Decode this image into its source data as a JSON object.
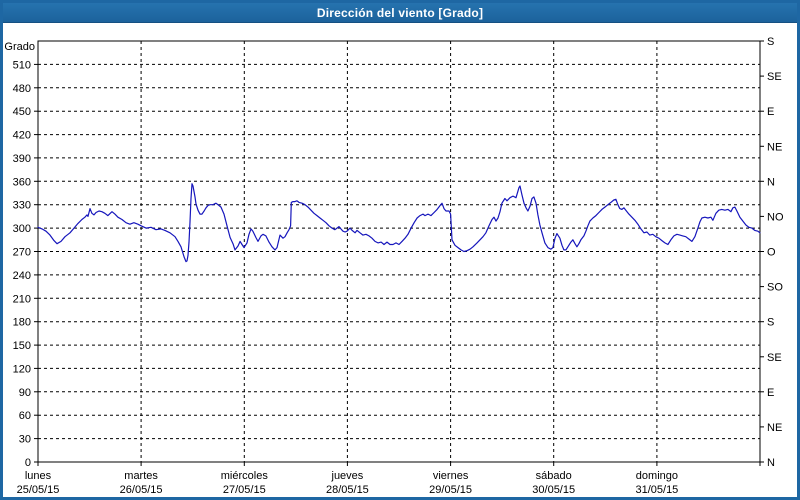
{
  "window": {
    "title": "Dirección del viento [Grado]"
  },
  "colors": {
    "titlebar_blue": "#1e67a3",
    "window_border_blue": "#1e67a3",
    "series_line_blue": "#1616bc",
    "grid_black": "#000000",
    "background_white": "#ffffff"
  },
  "chart_data": {
    "type": "line",
    "title": "Dirección del viento [Grado]",
    "ylabel": "Grado",
    "legend": "none",
    "grid": "dashed",
    "y_axis_left": {
      "min": 0,
      "max": 540,
      "tick_step": 30,
      "labeled_max": 510,
      "tick_labels": [
        "0",
        "30",
        "60",
        "90",
        "120",
        "150",
        "180",
        "210",
        "240",
        "270",
        "300",
        "330",
        "360",
        "390",
        "420",
        "450",
        "480",
        "510"
      ]
    },
    "y_axis_right": {
      "tick_step": 45,
      "labels_top_to_bottom": [
        "S",
        "SE",
        "E",
        "NE",
        "N",
        "NO",
        "O",
        "SO",
        "S",
        "SE",
        "E",
        "NE",
        "N"
      ],
      "degrees_top_to_bottom": [
        540,
        495,
        450,
        405,
        360,
        315,
        270,
        225,
        180,
        135,
        90,
        45,
        0
      ]
    },
    "x_axis": {
      "unit": "days",
      "days": [
        {
          "name": "lunes",
          "date": "25/05/15"
        },
        {
          "name": "martes",
          "date": "26/05/15"
        },
        {
          "name": "miércoles",
          "date": "27/05/15"
        },
        {
          "name": "jueves",
          "date": "28/05/15"
        },
        {
          "name": "viernes",
          "date": "29/05/15"
        },
        {
          "name": "sábado",
          "date": "30/05/15"
        },
        {
          "name": "domingo",
          "date": "31/05/15"
        }
      ]
    },
    "series": [
      {
        "name": "Dirección del viento",
        "units": "Grado",
        "color": "#1616bc",
        "points": [
          [
            0,
            301
          ],
          [
            0.039,
            299
          ],
          [
            0.078,
            296
          ],
          [
            0.116,
            291
          ],
          [
            0.155,
            284
          ],
          [
            0.184,
            280
          ],
          [
            0.223,
            283
          ],
          [
            0.262,
            289
          ],
          [
            0.31,
            294
          ],
          [
            0.349,
            300
          ],
          [
            0.388,
            306
          ],
          [
            0.426,
            311
          ],
          [
            0.455,
            314
          ],
          [
            0.475,
            317
          ],
          [
            0.485,
            315
          ],
          [
            0.504,
            325
          ],
          [
            0.523,
            319
          ],
          [
            0.543,
            317
          ],
          [
            0.562,
            320
          ],
          [
            0.591,
            322
          ],
          [
            0.62,
            321
          ],
          [
            0.649,
            319
          ],
          [
            0.678,
            316
          ],
          [
            0.717,
            321
          ],
          [
            0.746,
            318
          ],
          [
            0.775,
            314
          ],
          [
            0.814,
            311
          ],
          [
            0.853,
            307
          ],
          [
            0.891,
            305
          ],
          [
            0.93,
            307
          ],
          [
            0.969,
            305
          ],
          [
            1.0,
            303
          ],
          [
            1.047,
            300
          ],
          [
            1.096,
            301
          ],
          [
            1.144,
            298
          ],
          [
            1.193,
            299
          ],
          [
            1.231,
            297
          ],
          [
            1.28,
            294
          ],
          [
            1.328,
            289
          ],
          [
            1.357,
            283
          ],
          [
            1.386,
            276
          ],
          [
            1.416,
            263
          ],
          [
            1.435,
            257
          ],
          [
            1.445,
            258
          ],
          [
            1.454,
            265
          ],
          [
            1.464,
            282
          ],
          [
            1.474,
            308
          ],
          [
            1.483,
            338
          ],
          [
            1.493,
            357
          ],
          [
            1.503,
            354
          ],
          [
            1.522,
            340
          ],
          [
            1.532,
            331
          ],
          [
            1.551,
            323
          ],
          [
            1.571,
            318
          ],
          [
            1.59,
            318
          ],
          [
            1.61,
            322
          ],
          [
            1.629,
            326
          ],
          [
            1.648,
            329
          ],
          [
            1.668,
            330
          ],
          [
            1.697,
            330
          ],
          [
            1.726,
            332
          ],
          [
            1.755,
            329
          ],
          [
            1.774,
            327
          ],
          [
            1.803,
            318
          ],
          [
            1.832,
            303
          ],
          [
            1.862,
            288
          ],
          [
            1.891,
            280
          ],
          [
            1.91,
            272
          ],
          [
            1.939,
            277
          ],
          [
            1.959,
            283
          ],
          [
            1.978,
            279
          ],
          [
            1.997,
            275
          ],
          [
            2.026,
            281
          ],
          [
            2.046,
            292
          ],
          [
            2.065,
            299
          ],
          [
            2.084,
            296
          ],
          [
            2.113,
            288
          ],
          [
            2.133,
            283
          ],
          [
            2.162,
            290
          ],
          [
            2.181,
            292
          ],
          [
            2.21,
            290
          ],
          [
            2.24,
            282
          ],
          [
            2.269,
            276
          ],
          [
            2.298,
            272
          ],
          [
            2.317,
            275
          ],
          [
            2.346,
            291
          ],
          [
            2.375,
            287
          ],
          [
            2.395,
            289
          ],
          [
            2.415,
            294
          ],
          [
            2.434,
            298
          ],
          [
            2.449,
            303
          ],
          [
            2.456,
            333
          ],
          [
            2.472,
            334
          ],
          [
            2.491,
            334
          ],
          [
            2.511,
            335
          ],
          [
            2.53,
            333
          ],
          [
            2.56,
            332
          ],
          [
            2.589,
            330
          ],
          [
            2.618,
            327
          ],
          [
            2.647,
            323
          ],
          [
            2.676,
            319
          ],
          [
            2.705,
            316
          ],
          [
            2.734,
            313
          ],
          [
            2.763,
            310
          ],
          [
            2.792,
            307
          ],
          [
            2.821,
            303
          ],
          [
            2.85,
            300
          ],
          [
            2.879,
            298
          ],
          [
            2.899,
            300
          ],
          [
            2.918,
            302
          ],
          [
            2.937,
            299
          ],
          [
            2.957,
            296
          ],
          [
            2.977,
            295
          ],
          [
            2.996,
            296
          ],
          [
            3.025,
            300
          ],
          [
            3.045,
            297
          ],
          [
            3.074,
            294
          ],
          [
            3.093,
            297
          ],
          [
            3.122,
            294
          ],
          [
            3.151,
            291
          ],
          [
            3.18,
            292
          ],
          [
            3.209,
            290
          ],
          [
            3.238,
            287
          ],
          [
            3.267,
            283
          ],
          [
            3.296,
            281
          ],
          [
            3.326,
            282
          ],
          [
            3.355,
            279
          ],
          [
            3.384,
            282
          ],
          [
            3.413,
            279
          ],
          [
            3.442,
            279
          ],
          [
            3.471,
            281
          ],
          [
            3.5,
            279
          ],
          [
            3.529,
            283
          ],
          [
            3.558,
            287
          ],
          [
            3.587,
            292
          ],
          [
            3.617,
            300
          ],
          [
            3.646,
            307
          ],
          [
            3.675,
            313
          ],
          [
            3.704,
            316
          ],
          [
            3.733,
            318
          ],
          [
            3.752,
            316
          ],
          [
            3.781,
            318
          ],
          [
            3.81,
            316
          ],
          [
            3.84,
            320
          ],
          [
            3.869,
            324
          ],
          [
            3.898,
            329
          ],
          [
            3.917,
            332
          ],
          [
            3.936,
            325
          ],
          [
            3.956,
            322
          ],
          [
            3.985,
            322
          ],
          [
            4.0,
            318
          ],
          [
            4.014,
            285
          ],
          [
            4.043,
            278
          ],
          [
            4.072,
            275
          ],
          [
            4.101,
            272
          ],
          [
            4.13,
            270
          ],
          [
            4.159,
            271
          ],
          [
            4.188,
            273
          ],
          [
            4.217,
            276
          ],
          [
            4.256,
            281
          ],
          [
            4.285,
            285
          ],
          [
            4.314,
            289
          ],
          [
            4.343,
            294
          ],
          [
            4.373,
            303
          ],
          [
            4.402,
            311
          ],
          [
            4.421,
            314
          ],
          [
            4.44,
            309
          ],
          [
            4.46,
            313
          ],
          [
            4.479,
            321
          ],
          [
            4.498,
            332
          ],
          [
            4.527,
            338
          ],
          [
            4.547,
            335
          ],
          [
            4.576,
            339
          ],
          [
            4.605,
            341
          ],
          [
            4.634,
            339
          ],
          [
            4.663,
            352
          ],
          [
            4.673,
            354
          ],
          [
            4.692,
            343
          ],
          [
            4.712,
            332
          ],
          [
            4.731,
            326
          ],
          [
            4.75,
            322
          ],
          [
            4.77,
            328
          ],
          [
            4.789,
            338
          ],
          [
            4.808,
            340
          ],
          [
            4.828,
            332
          ],
          [
            4.847,
            317
          ],
          [
            4.866,
            304
          ],
          [
            4.886,
            294
          ],
          [
            4.915,
            281
          ],
          [
            4.944,
            275
          ],
          [
            4.973,
            273
          ],
          [
            4.992,
            275
          ],
          [
            5.012,
            287
          ],
          [
            5.031,
            293
          ],
          [
            5.06,
            287
          ],
          [
            5.08,
            278
          ],
          [
            5.099,
            272
          ],
          [
            5.118,
            272
          ],
          [
            5.138,
            276
          ],
          [
            5.167,
            282
          ],
          [
            5.186,
            285
          ],
          [
            5.206,
            280
          ],
          [
            5.225,
            276
          ],
          [
            5.244,
            280
          ],
          [
            5.264,
            285
          ],
          [
            5.293,
            290
          ],
          [
            5.312,
            296
          ],
          [
            5.331,
            303
          ],
          [
            5.351,
            309
          ],
          [
            5.38,
            313
          ],
          [
            5.409,
            316
          ],
          [
            5.438,
            320
          ],
          [
            5.467,
            324
          ],
          [
            5.496,
            327
          ],
          [
            5.525,
            330
          ],
          [
            5.554,
            333
          ],
          [
            5.583,
            336
          ],
          [
            5.603,
            337
          ],
          [
            5.622,
            330
          ],
          [
            5.641,
            325
          ],
          [
            5.661,
            324
          ],
          [
            5.68,
            326
          ],
          [
            5.699,
            323
          ],
          [
            5.729,
            318
          ],
          [
            5.758,
            314
          ],
          [
            5.787,
            310
          ],
          [
            5.816,
            305
          ],
          [
            5.845,
            299
          ],
          [
            5.874,
            294
          ],
          [
            5.903,
            295
          ],
          [
            5.932,
            291
          ],
          [
            5.961,
            292
          ],
          [
            5.99,
            289
          ],
          [
            6.02,
            287
          ],
          [
            6.049,
            284
          ],
          [
            6.078,
            281
          ],
          [
            6.107,
            279
          ],
          [
            6.136,
            285
          ],
          [
            6.165,
            290
          ],
          [
            6.194,
            292
          ],
          [
            6.223,
            291
          ],
          [
            6.252,
            290
          ],
          [
            6.281,
            289
          ],
          [
            6.31,
            286
          ],
          [
            6.34,
            283
          ],
          [
            6.369,
            289
          ],
          [
            6.398,
            300
          ],
          [
            6.417,
            308
          ],
          [
            6.437,
            313
          ],
          [
            6.466,
            314
          ],
          [
            6.495,
            313
          ],
          [
            6.524,
            314
          ],
          [
            6.543,
            310
          ],
          [
            6.572,
            319
          ],
          [
            6.601,
            323
          ],
          [
            6.63,
            324
          ],
          [
            6.66,
            323
          ],
          [
            6.689,
            324
          ],
          [
            6.718,
            321
          ],
          [
            6.737,
            326
          ],
          [
            6.757,
            327
          ],
          [
            6.776,
            322
          ],
          [
            6.805,
            314
          ],
          [
            6.834,
            309
          ],
          [
            6.863,
            304
          ],
          [
            6.892,
            301
          ],
          [
            6.921,
            300
          ],
          [
            6.95,
            297
          ],
          [
            6.98,
            296
          ],
          [
            6.999,
            294
          ]
        ]
      }
    ]
  }
}
